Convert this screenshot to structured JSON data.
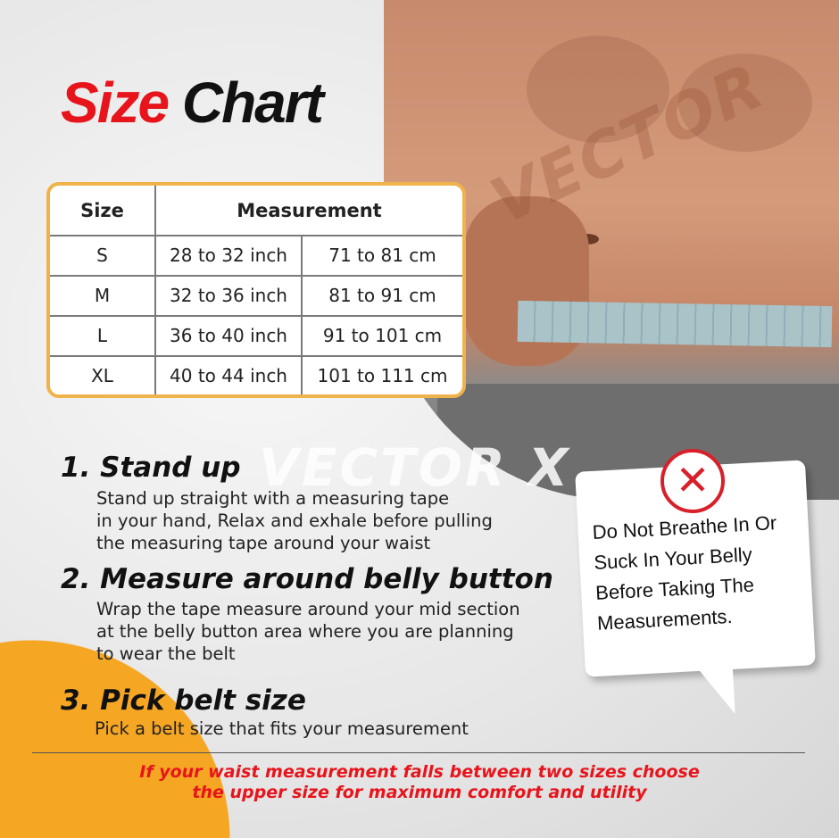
{
  "title": {
    "part1": "Size",
    "part2": "Chart"
  },
  "brand": "VECTOR X",
  "table": {
    "headers": [
      "Size",
      "Measurement"
    ],
    "rows": [
      {
        "size": "S",
        "inch": "28 to 32 inch",
        "cm": "71 to 81 cm"
      },
      {
        "size": "M",
        "inch": "32 to 36 inch",
        "cm": "81 to 91 cm"
      },
      {
        "size": "L",
        "inch": "36 to 40 inch",
        "cm": "91 to 101 cm"
      },
      {
        "size": "XL",
        "inch": "40 to 44 inch",
        "cm": "101 to 111 cm"
      }
    ]
  },
  "steps": [
    {
      "title": "1. Stand up",
      "text": "Stand up straight with a measuring tape\nin your hand, Relax and exhale before pulling\nthe measuring tape around your waist"
    },
    {
      "title": "2. Measure around belly button",
      "text": "Wrap the tape measure around your mid section\nat the belly button area where you are planning\nto wear the belt"
    },
    {
      "title": "3. Pick belt size",
      "text": "Pick a belt size that fits your measurement"
    }
  ],
  "warning": {
    "icon": "x-mark-icon",
    "text": "Do Not Breathe In Or\nSuck In Your Belly\nBefore Taking The\nMeasurements."
  },
  "note": "If your waist measurement falls between two sizes choose\nthe upper size for maximum comfort and utility",
  "colors": {
    "accent_red": "#e8141b",
    "table_border": "#f0b24a",
    "orange": "#f5a623"
  }
}
